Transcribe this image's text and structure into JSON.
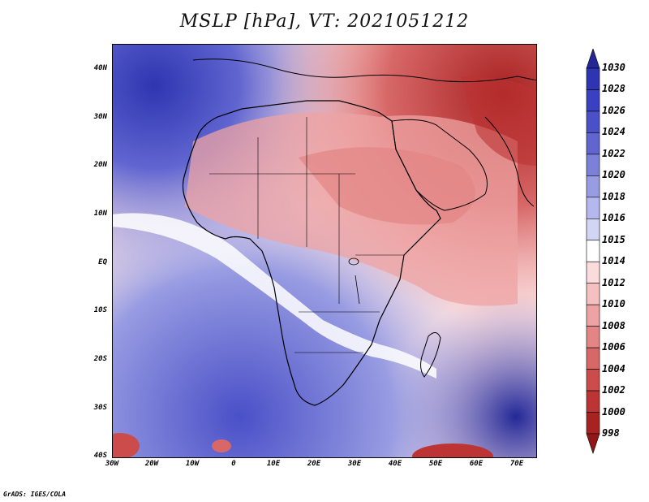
{
  "title": "MSLP [hPa], VT: 2021051212",
  "credit": "GrADS: IGES/COLA",
  "lat_labels": [
    "40N",
    "30N",
    "20N",
    "10N",
    "EQ",
    "10S",
    "20S",
    "30S",
    "40S"
  ],
  "lon_labels": [
    "30W",
    "20W",
    "10W",
    "0",
    "10E",
    "20E",
    "30E",
    "40E",
    "50E",
    "60E",
    "70E"
  ],
  "colorbar": {
    "levels": [
      "1030",
      "1028",
      "1026",
      "1024",
      "1022",
      "1020",
      "1018",
      "1016",
      "1015",
      "1014",
      "1012",
      "1010",
      "1008",
      "1006",
      "1004",
      "1002",
      "1000",
      "998"
    ],
    "colors": [
      "#232896",
      "#2e35b0",
      "#3a40c2",
      "#4a50c8",
      "#6065d0",
      "#7b80d8",
      "#989ce2",
      "#b5b8ec",
      "#d3d5f4",
      "#ffffff",
      "#fbdcdc",
      "#f5c0c0",
      "#eda3a3",
      "#e38585",
      "#d86868",
      "#cc4c4c",
      "#bc3434",
      "#a82222",
      "#921818"
    ]
  }
}
